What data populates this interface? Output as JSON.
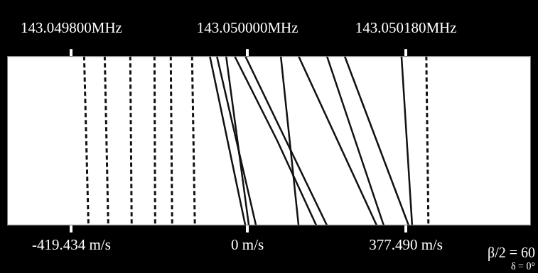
{
  "chart_data": {
    "type": "line",
    "xlim": [
      143.049727,
      143.050322
    ],
    "xticks": [
      {
        "value": 143.0498,
        "label": "143.049800MHz"
      },
      {
        "value": 143.05,
        "label": "143.050000MHz"
      },
      {
        "value": 143.05018,
        "label": "143.050180MHz"
      }
    ],
    "x2lim": [
      -572.5,
      675.3
    ],
    "x2ticks": [
      {
        "value": -419.434,
        "label": "-419.434 m/s"
      },
      {
        "value": 0,
        "label": "0 m/s"
      },
      {
        "value": 377.49,
        "label": "377.490 m/s"
      }
    ],
    "ylim": [
      0,
      100
    ],
    "grid": false,
    "tick_labels": "x",
    "annotations": [
      "β/2 = 60",
      "δ = 0°"
    ],
    "series": [
      {
        "color": "#111111",
        "line_style": "dashed",
        "x": [
          143.0498145,
          143.0498194
        ],
        "y": [
          100,
          0
        ]
      },
      {
        "color": "#111111",
        "line_style": "dashed",
        "x": [
          143.0498379,
          143.0498419
        ],
        "y": [
          100,
          0
        ]
      },
      {
        "color": "#111111",
        "line_style": "dashed",
        "x": [
          143.0498669,
          143.0498685
        ],
        "y": [
          100,
          0
        ]
      },
      {
        "color": "#111111",
        "line_style": "dashed",
        "x": [
          143.0498944,
          143.0498952
        ],
        "y": [
          100,
          0
        ]
      },
      {
        "color": "#111111",
        "line_style": "dashed",
        "x": [
          143.0499129,
          143.0499145
        ],
        "y": [
          100,
          0
        ]
      },
      {
        "color": "#111111",
        "line_style": "dashed",
        "x": [
          143.0499371,
          143.0499403
        ],
        "y": [
          100,
          0
        ]
      },
      {
        "color": "#111111",
        "line_style": "solid",
        "x": [
          143.0499573,
          143.0499976
        ],
        "y": [
          100,
          0
        ]
      },
      {
        "color": "#111111",
        "line_style": "solid",
        "x": [
          143.0499653,
          143.0500097
        ],
        "y": [
          100,
          0
        ]
      },
      {
        "color": "#111111",
        "line_style": "solid",
        "x": [
          143.0499758,
          143.0500016
        ],
        "y": [
          100,
          0
        ]
      },
      {
        "color": "#111111",
        "line_style": "solid",
        "x": [
          143.0499855,
          143.0500339,
          143.0500782
        ],
        "y": [
          100,
          50,
          0
        ]
      },
      {
        "color": "#111111",
        "line_style": "solid",
        "x": [
          143.0499976,
          143.0500903
        ],
        "y": [
          100,
          0
        ]
      },
      {
        "color": "#111111",
        "line_style": "solid",
        "x": [
          143.0500379,
          143.0500581
        ],
        "y": [
          100,
          0
        ]
      },
      {
        "color": "#111111",
        "line_style": "solid",
        "x": [
          143.0500581,
          143.0501468
        ],
        "y": [
          100,
          0
        ]
      },
      {
        "color": "#111111",
        "line_style": "solid",
        "x": [
          143.0500903,
          143.0501548
        ],
        "y": [
          100,
          0
        ]
      },
      {
        "color": "#111111",
        "line_style": "solid",
        "x": [
          143.0501105,
          143.0501831
        ],
        "y": [
          100,
          0
        ]
      },
      {
        "color": "#111111",
        "line_style": "solid",
        "x": [
          143.050175,
          143.0501871
        ],
        "y": [
          100,
          0
        ]
      },
      {
        "color": "#111111",
        "line_style": "dashed",
        "x": [
          143.0502032,
          143.0502056
        ],
        "y": [
          100,
          0
        ]
      }
    ]
  }
}
